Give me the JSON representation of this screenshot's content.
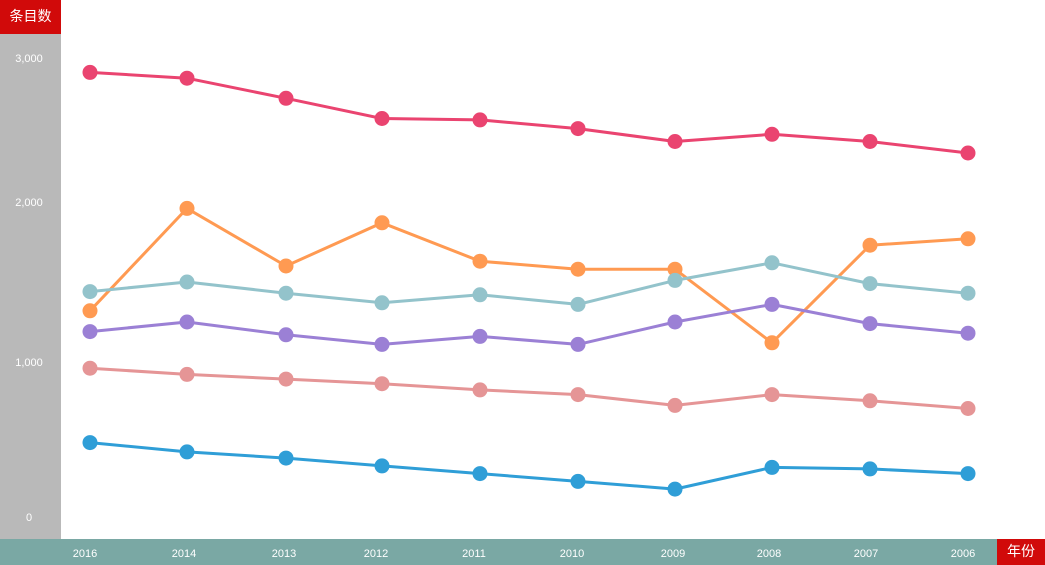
{
  "chart_data": {
    "type": "line",
    "title": "",
    "ylabel": "条目数",
    "xlabel": "年份",
    "x": [
      "2016",
      "2014",
      "2013",
      "2012",
      "2011",
      "2010",
      "2009",
      "2008",
      "2007",
      "2006"
    ],
    "yticks": [
      {
        "value": 3000,
        "label": "3,000"
      },
      {
        "value": 2000,
        "label": "2,000"
      },
      {
        "value": 1000,
        "label": "1,000"
      },
      {
        "value": 0,
        "label": "0"
      }
    ],
    "grid": false,
    "legend": "none",
    "series": [
      {
        "color": "#ea4470",
        "values": [
          2900,
          2860,
          2720,
          2580,
          2570,
          2510,
          2420,
          2470,
          2420,
          2340
        ]
      },
      {
        "color": "#ff9a52",
        "values": [
          1320,
          1960,
          1600,
          1870,
          1630,
          1580,
          1580,
          1120,
          1730,
          1770
        ]
      },
      {
        "color": "#93c3cb",
        "values": [
          1440,
          1500,
          1430,
          1370,
          1420,
          1360,
          1510,
          1620,
          1490,
          1430
        ]
      },
      {
        "color": "#9b80d5",
        "values": [
          1190,
          1250,
          1170,
          1110,
          1160,
          1110,
          1250,
          1360,
          1240,
          1180
        ]
      },
      {
        "color": "#e59596",
        "values": [
          960,
          920,
          890,
          860,
          820,
          790,
          720,
          790,
          750,
          700
        ]
      },
      {
        "color": "#2f9ed7",
        "values": [
          480,
          420,
          380,
          330,
          280,
          230,
          180,
          320,
          310,
          280
        ]
      }
    ]
  }
}
